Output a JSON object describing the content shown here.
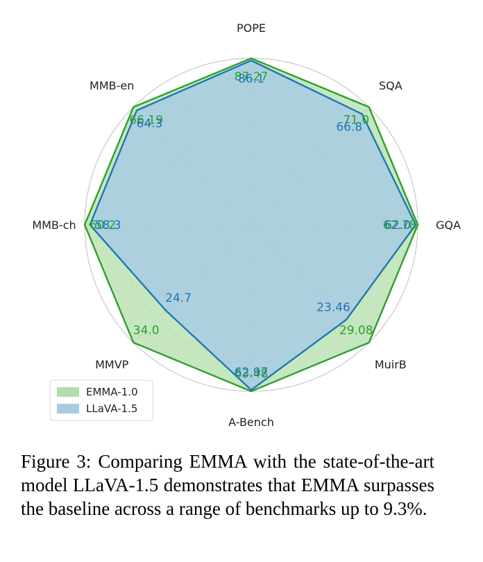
{
  "chart_data": {
    "type": "radar",
    "axes": [
      "POPE",
      "SQA",
      "GQA",
      "MuirB",
      "A-Bench",
      "MMVP",
      "MMB-ch",
      "MMB-en"
    ],
    "series": [
      {
        "name": "EMMA-1.0",
        "values": [
          87.27,
          71.0,
          62.78,
          29.08,
          63.48,
          34.0,
          60.2,
          66.19
        ],
        "labels": [
          "87.27",
          "71.0",
          "62.78",
          "29.08",
          "63.48",
          "34.0",
          "60.2",
          "66.19"
        ],
        "fill_color": "#b3deab",
        "line_color": "#2ca02c"
      },
      {
        "name": "LLaVA-1.5",
        "values": [
          86.1,
          66.8,
          62.0,
          23.46,
          62.97,
          24.7,
          58.3,
          64.3
        ],
        "labels": [
          "86.1",
          "66.8",
          "62.0",
          "23.46",
          "62.97",
          "24.7",
          "58.3",
          "64.3"
        ],
        "fill_color": "#a8cbe3",
        "line_color": "#1f77b4"
      }
    ],
    "grid": true,
    "legend_position": "bottom-left"
  },
  "caption": {
    "label": "Figure 3:",
    "text": "Comparing EMMA with the state-of-the-art model LLaVA-1.5 demonstrates that EMMA surpasses the baseline across a range of benchmarks up to 9.3%."
  }
}
